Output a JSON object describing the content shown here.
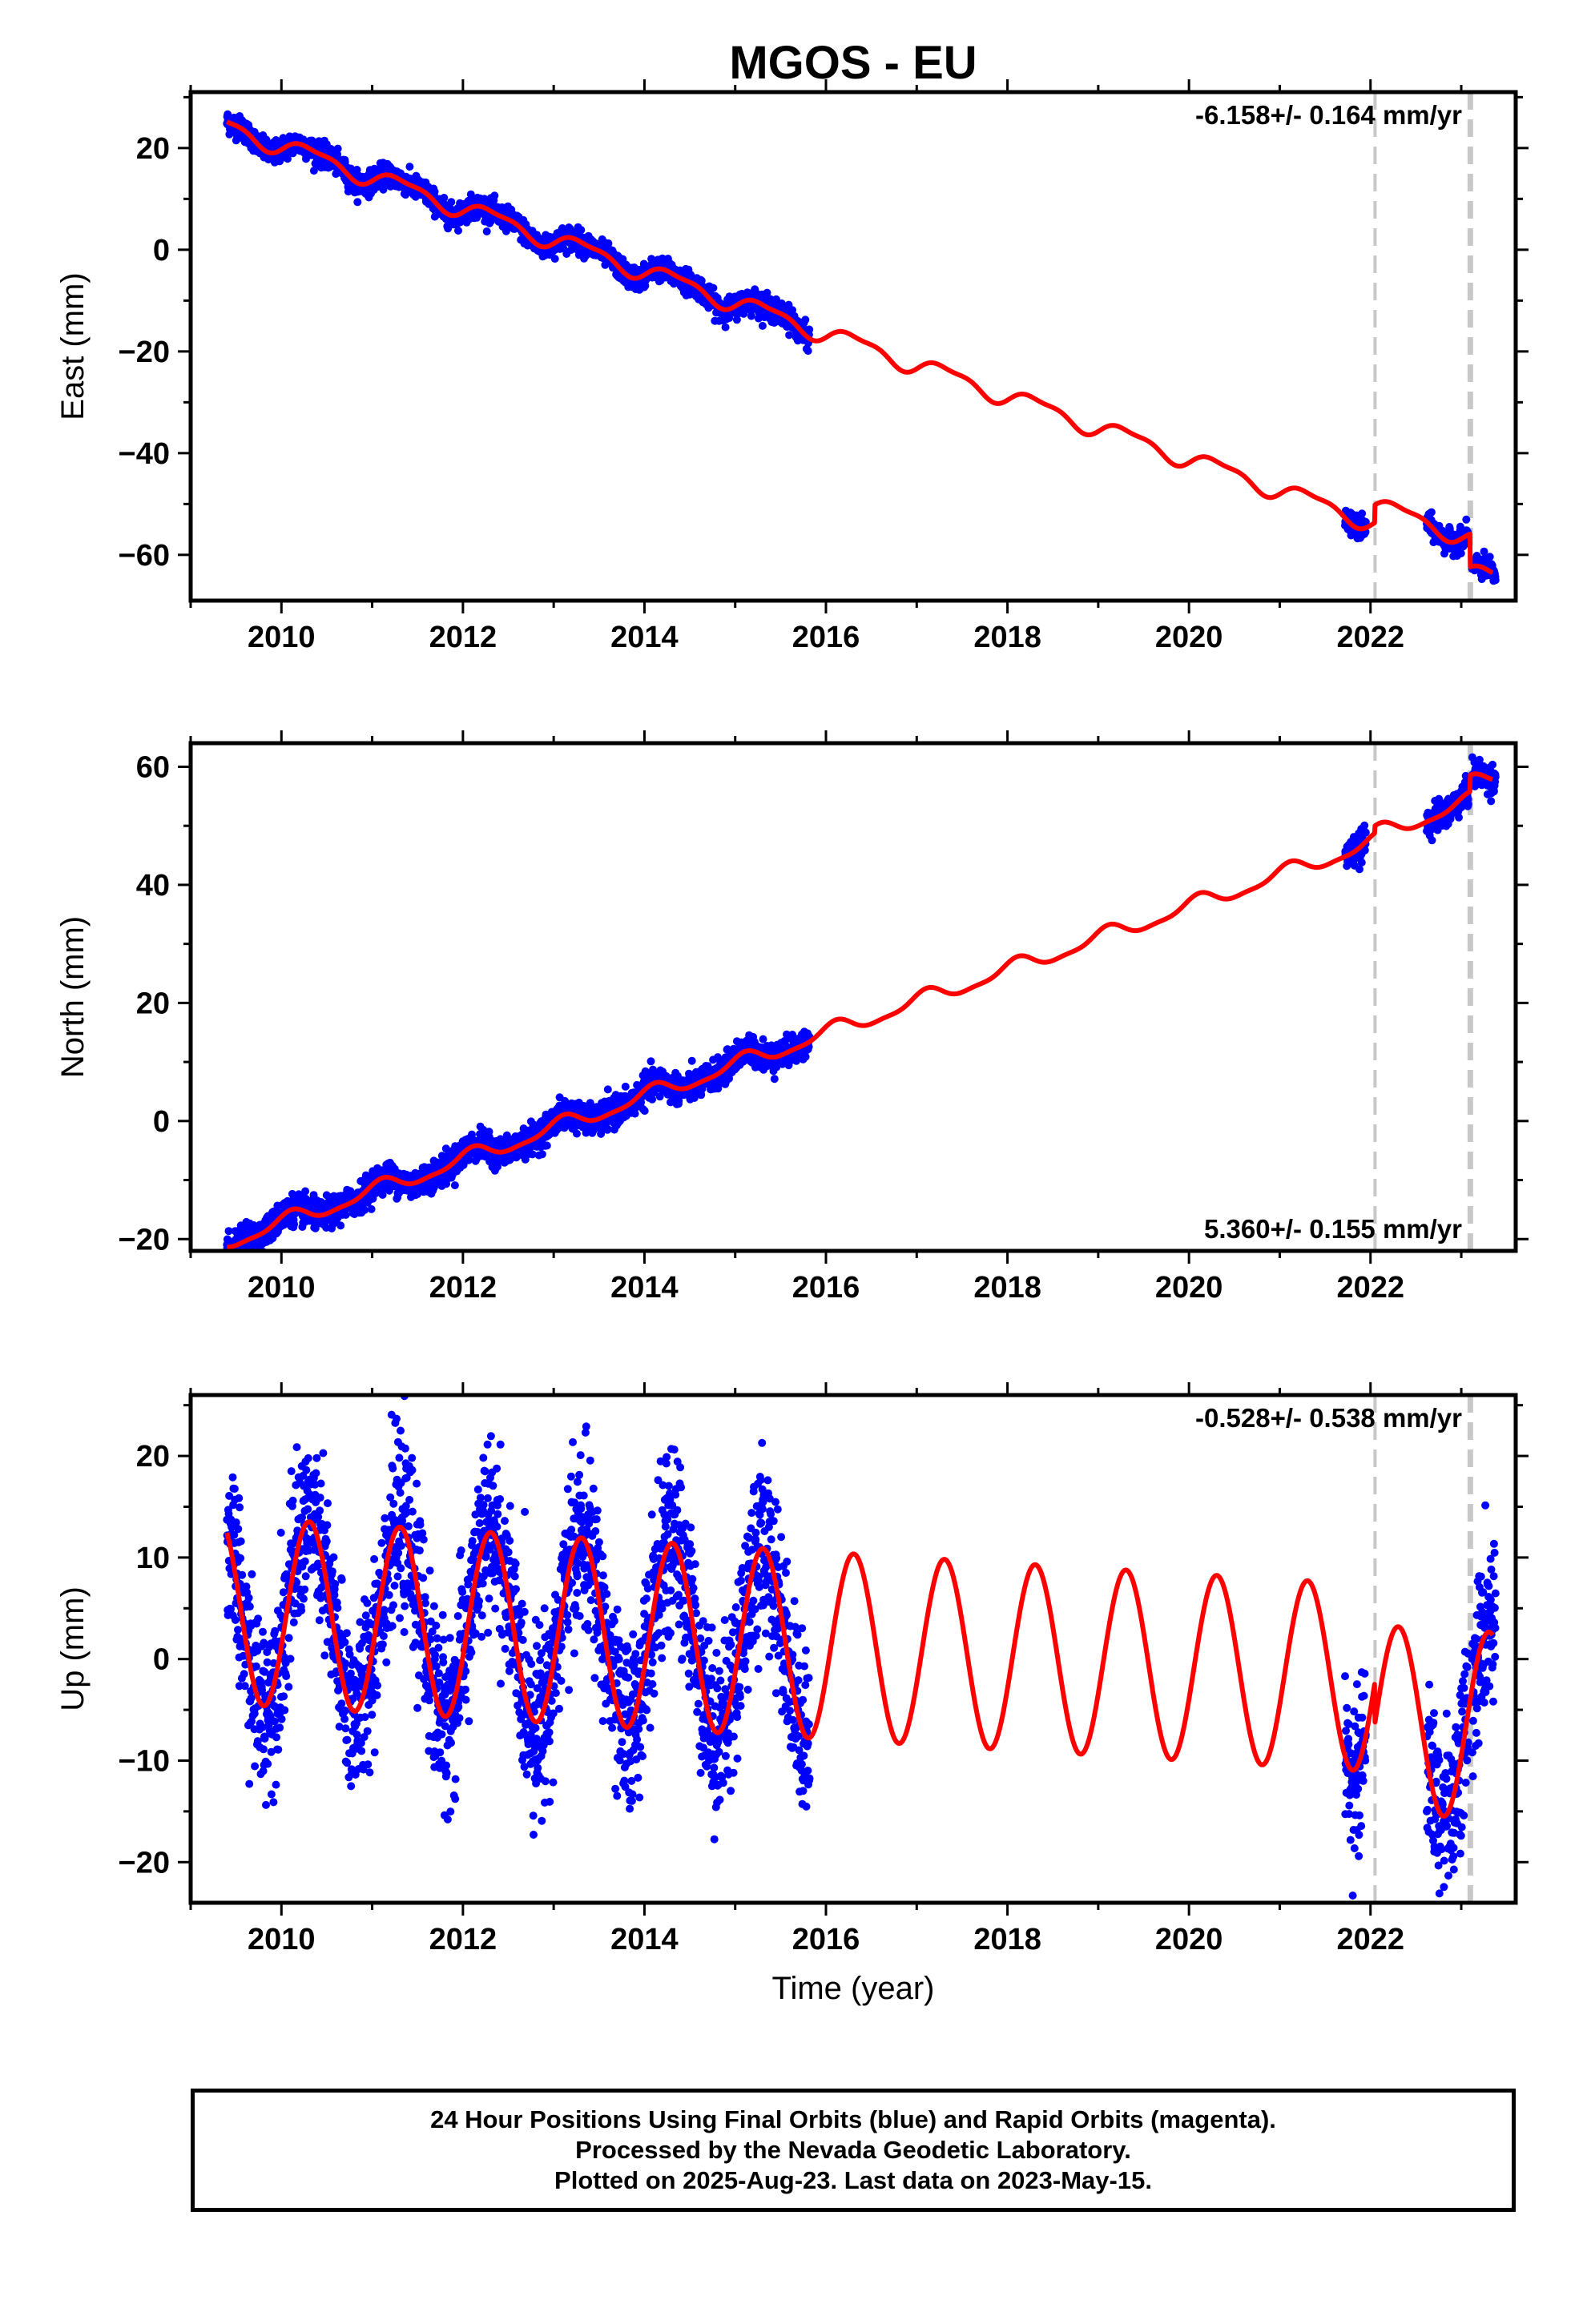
{
  "colors": {
    "final_orbits": "#0000ff",
    "model": "#ff0000",
    "event_line": "#c8c8c8",
    "frame": "#000000"
  },
  "chart_data": [
    {
      "type": "scatter",
      "panel": "east",
      "title": "MGOS - EU",
      "ylabel": "East (mm)",
      "xlabel": "",
      "xlim": [
        2009.0,
        2023.6
      ],
      "ylim": [
        -69,
        31
      ],
      "xticks": [
        2010,
        2012,
        2014,
        2016,
        2018,
        2020,
        2022
      ],
      "yticks": [
        20,
        0,
        -20,
        -40,
        -60
      ],
      "rate_label": "-6.158+/- 0.164 mm/yr",
      "rate_position": "top-right",
      "event_lines": [
        2022.05,
        2023.1
      ],
      "trend": {
        "slope": -6.158,
        "ref_year": 2009.4,
        "ref_value": 24.2
      },
      "seasonal": {
        "annual_amplitude": 1.7,
        "annual_phase": -0.5,
        "semiannual_amplitude": 0.6
      },
      "offsets": [
        {
          "year": 2022.05,
          "value": 3.5
        },
        {
          "year": 2023.1,
          "value": -6.5
        }
      ],
      "model_range": [
        2009.4,
        2023.35
      ],
      "noise_sd": 1.1,
      "data_segments": [
        [
          2009.4,
          2015.82
        ],
        [
          2021.72,
          2021.95
        ],
        [
          2022.62,
          2023.08
        ],
        [
          2023.12,
          2023.38
        ]
      ],
      "series": [
        {
          "name": "Final Orbits",
          "color": "#0000ff",
          "kind": "points"
        },
        {
          "name": "Model",
          "color": "#ff0000",
          "kind": "line"
        }
      ]
    },
    {
      "type": "scatter",
      "panel": "north",
      "ylabel": "North (mm)",
      "xlabel": "",
      "xlim": [
        2009.0,
        2023.6
      ],
      "ylim": [
        -22,
        64
      ],
      "xticks": [
        2010,
        2012,
        2014,
        2016,
        2018,
        2020,
        2022
      ],
      "yticks": [
        60,
        40,
        20,
        0,
        -20
      ],
      "rate_label": "5.360+/- 0.155 mm/yr",
      "rate_position": "bottom-right",
      "event_lines": [
        2022.05,
        2023.1
      ],
      "trend": {
        "slope": 5.36,
        "ref_year": 2009.4,
        "ref_value": -20.5
      },
      "seasonal": {
        "annual_amplitude": 1.3,
        "annual_phase": 1.0,
        "semiannual_amplitude": 0.4
      },
      "offsets": [
        {
          "year": 2022.05,
          "value": 1.2
        },
        {
          "year": 2023.1,
          "value": 2.8
        }
      ],
      "model_range": [
        2009.4,
        2023.35
      ],
      "noise_sd": 1.2,
      "data_segments": [
        [
          2009.4,
          2015.82
        ],
        [
          2021.72,
          2021.95
        ],
        [
          2022.62,
          2023.08
        ],
        [
          2023.12,
          2023.38
        ]
      ],
      "series": [
        {
          "name": "Final Orbits",
          "color": "#0000ff",
          "kind": "points"
        },
        {
          "name": "Model",
          "color": "#ff0000",
          "kind": "line"
        }
      ]
    },
    {
      "type": "scatter",
      "panel": "up",
      "ylabel": "Up (mm)",
      "xlabel": "Time (year)",
      "xlim": [
        2009.0,
        2023.6
      ],
      "ylim": [
        -24,
        26
      ],
      "xticks": [
        2010,
        2012,
        2014,
        2016,
        2018,
        2020,
        2022
      ],
      "yticks": [
        20,
        10,
        0,
        -10,
        -20
      ],
      "rate_label": "-0.528+/- 0.538 mm/yr",
      "rate_position": "top-right",
      "event_lines": [
        2022.05,
        2023.1
      ],
      "trend": {
        "slope": -0.528,
        "ref_year": 2009.4,
        "ref_value": 4.8
      },
      "seasonal": {
        "annual_amplitude": 9.2,
        "annual_phase": -0.35,
        "semiannual_amplitude": 0.0
      },
      "offsets": [
        {
          "year": 2022.05,
          "value": -4.0
        },
        {
          "year": 2023.1,
          "value": 0.0
        }
      ],
      "model_range": [
        2009.4,
        2023.35
      ],
      "noise_sd": 4.2,
      "data_segments": [
        [
          2009.4,
          2015.82
        ],
        [
          2021.72,
          2021.95
        ],
        [
          2022.62,
          2023.08
        ],
        [
          2023.12,
          2023.38
        ]
      ],
      "series": [
        {
          "name": "Final Orbits",
          "color": "#0000ff",
          "kind": "points"
        },
        {
          "name": "Model",
          "color": "#ff0000",
          "kind": "line"
        }
      ]
    }
  ],
  "footer": {
    "line1": "24 Hour Positions Using Final Orbits (blue) and Rapid Orbits (magenta).",
    "line2": "Processed by the Nevada Geodetic Laboratory.",
    "line3": "Plotted on 2025-Aug-23. Last data on 2023-May-15."
  }
}
